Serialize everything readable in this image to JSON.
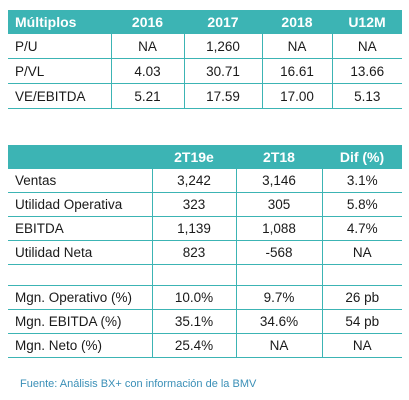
{
  "multiples_table": {
    "headers": [
      "Múltiplos",
      "2016",
      "2017",
      "2018",
      "U12M"
    ],
    "rows": [
      [
        "P/U",
        "NA",
        "1,260",
        "NA",
        "NA"
      ],
      [
        "P/VL",
        "4.03",
        "30.71",
        "16.61",
        "13.66"
      ],
      [
        "VE/EBITDA",
        "5.21",
        "17.59",
        "17.00",
        "5.13"
      ]
    ]
  },
  "results_table": {
    "headers": [
      "",
      "2T19e",
      "2T18",
      "Dif (%)"
    ],
    "rows": [
      [
        "Ventas",
        "3,242",
        "3,146",
        "3.1%"
      ],
      [
        "Utilidad Operativa",
        "323",
        "305",
        "5.8%"
      ],
      [
        "EBITDA",
        "1,139",
        "1,088",
        "4.7%"
      ],
      [
        "Utilidad Neta",
        "823",
        "-568",
        "NA"
      ],
      [
        "",
        "",
        "",
        ""
      ],
      [
        "Mgn. Operativo (%)",
        "10.0%",
        "9.7%",
        "26 pb"
      ],
      [
        "Mgn. EBITDA (%)",
        "35.1%",
        "34.6%",
        "54 pb"
      ],
      [
        "Mgn. Neto (%)",
        "25.4%",
        "NA",
        "NA"
      ]
    ]
  },
  "source_note": "Fuente: Análisis BX+ con información de la BMV",
  "colors": {
    "header_bg": "#3cb4b4",
    "header_text": "#ffffff",
    "source_text": "#3a8fb7"
  }
}
